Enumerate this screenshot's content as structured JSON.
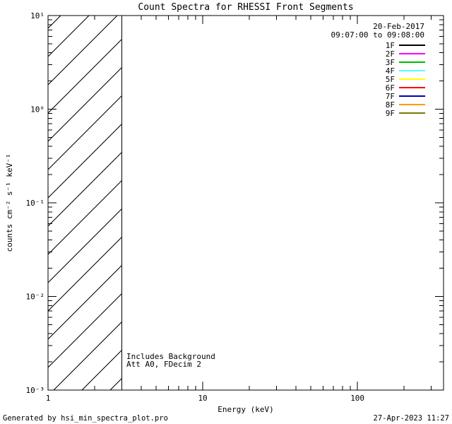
{
  "window": {
    "background": "#ffffff"
  },
  "footer": {
    "left": "Generated by hsi_min_spectra_plot.pro",
    "right": "27-Apr-2023 11:27"
  },
  "chart_data": {
    "type": "line",
    "title": "Count Spectra for RHESSI Front Segments",
    "xlabel": "Energy (keV)",
    "ylabel": "counts cm⁻² s⁻¹ keV⁻¹",
    "x_scale": "log",
    "y_scale": "log",
    "xlim": [
      1,
      360
    ],
    "ylim": [
      0.001,
      10
    ],
    "x_ticks": [
      {
        "value": 1,
        "label": "1"
      },
      {
        "value": 10,
        "label": "10"
      },
      {
        "value": 100,
        "label": "100"
      }
    ],
    "y_ticks": [
      {
        "value": 0.001,
        "label": "10⁻³"
      },
      {
        "value": 0.01,
        "label": "10⁻²"
      },
      {
        "value": 0.1,
        "label": "10⁻¹"
      },
      {
        "value": 1,
        "label": "10⁰"
      },
      {
        "value": 10,
        "label": "10¹"
      }
    ],
    "grid": false,
    "date_label": "20-Feb-2017",
    "time_label": "09:07:00 to 09:08:00",
    "legend_position": "top-right",
    "legend": [
      {
        "name": "1F",
        "color": "#000000"
      },
      {
        "name": "2F",
        "color": "#ff00ff"
      },
      {
        "name": "3F",
        "color": "#00bb00"
      },
      {
        "name": "4F",
        "color": "#55ffff"
      },
      {
        "name": "5F",
        "color": "#ffff00"
      },
      {
        "name": "6F",
        "color": "#ff0000"
      },
      {
        "name": "7F",
        "color": "#0000bb"
      },
      {
        "name": "8F",
        "color": "#ff9900"
      },
      {
        "name": "9F",
        "color": "#7a7a00"
      }
    ],
    "annotations": [
      "Includes Background",
      "Att A0, FDecim 2"
    ],
    "hatch_region": {
      "x_from": 1,
      "x_to": 3,
      "style": "diagonal-lines"
    },
    "series": []
  }
}
